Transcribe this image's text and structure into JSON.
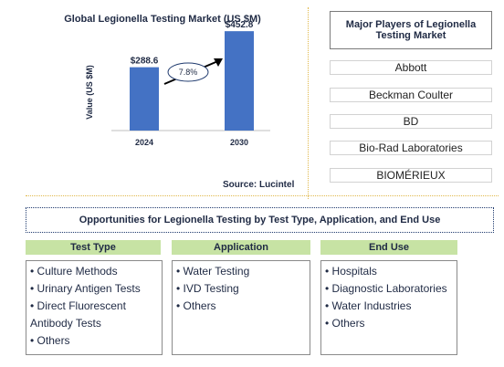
{
  "chart_data": {
    "type": "bar",
    "title": "Global Legionella Testing Market (US $M)",
    "ylabel": "Value (US $M)",
    "categories": [
      "2024",
      "2030"
    ],
    "values": [
      288.6,
      452.8
    ],
    "value_labels": [
      "$288.6",
      "$452.8"
    ],
    "cagr_label": "7.8%",
    "bar_color": "#4472c4",
    "ylim": [
      0,
      520
    ]
  },
  "source": "Source: Lucintel",
  "players": {
    "title": "Major Players of Legionella Testing Market",
    "items": [
      "Abbott",
      "Beckman Coulter",
      "BD",
      "Bio-Rad Laboratories",
      "BIOMÉRIEUX"
    ]
  },
  "opportunities": {
    "title": "Opportunities for Legionella Testing by Test Type, Application, and End Use",
    "columns": [
      {
        "header": "Test Type",
        "items": [
          "Culture Methods",
          "Urinary Antigen Tests",
          "Direct Fluorescent Antibody Tests",
          "Others"
        ]
      },
      {
        "header": "Application",
        "items": [
          "Water Testing",
          "IVD Testing",
          "Others"
        ]
      },
      {
        "header": "End Use",
        "items": [
          "Hospitals",
          "Diagnostic Laboratories",
          "Water Industries",
          "Others"
        ]
      }
    ],
    "header_color": "#c7e3a4"
  }
}
